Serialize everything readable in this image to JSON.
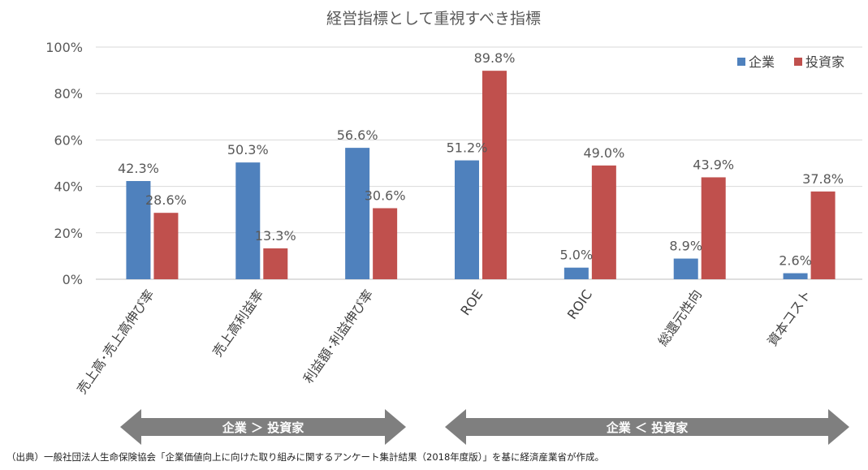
{
  "chart_data": {
    "type": "bar",
    "title": "経営指標として重視すべき指標",
    "categories": [
      "売上高･売上高伸び率",
      "売上高利益率",
      "利益額･利益伸び率",
      "ROE",
      "ROIC",
      "総還元性向",
      "資本コスト"
    ],
    "series": [
      {
        "name": "企業",
        "color": "#4f81bd",
        "values": [
          42.3,
          50.3,
          56.6,
          51.2,
          5.0,
          8.9,
          2.6
        ]
      },
      {
        "name": "投資家",
        "color": "#c0504d",
        "values": [
          28.6,
          13.3,
          30.6,
          89.8,
          49.0,
          43.9,
          37.8
        ]
      }
    ],
    "ylim": [
      0,
      100
    ],
    "yticks": [
      0,
      20,
      40,
      60,
      80,
      100
    ],
    "ytick_labels": [
      "0%",
      "20%",
      "40%",
      "60%",
      "80%",
      "100%"
    ],
    "data_labels": [
      [
        "42.3%",
        "50.3%",
        "56.6%",
        "51.2%",
        "5.0%",
        "8.9%",
        "2.6%"
      ],
      [
        "28.6%",
        "13.3%",
        "30.6%",
        "89.8%",
        "49.0%",
        "43.9%",
        "37.8%"
      ]
    ],
    "legend_position": "top-right",
    "xlabel": "",
    "ylabel": ""
  },
  "arrows": {
    "left_label": "企業 ＞ 投資家",
    "right_label": "企業 ＜ 投資家",
    "color": "#7f7f7f"
  },
  "footnote": "（出典）一般社団法人生命保険協会「企業価値向上に向けた取り組みに関するアンケート集計結果（2018年度版）」を基に経済産業省が作成。"
}
